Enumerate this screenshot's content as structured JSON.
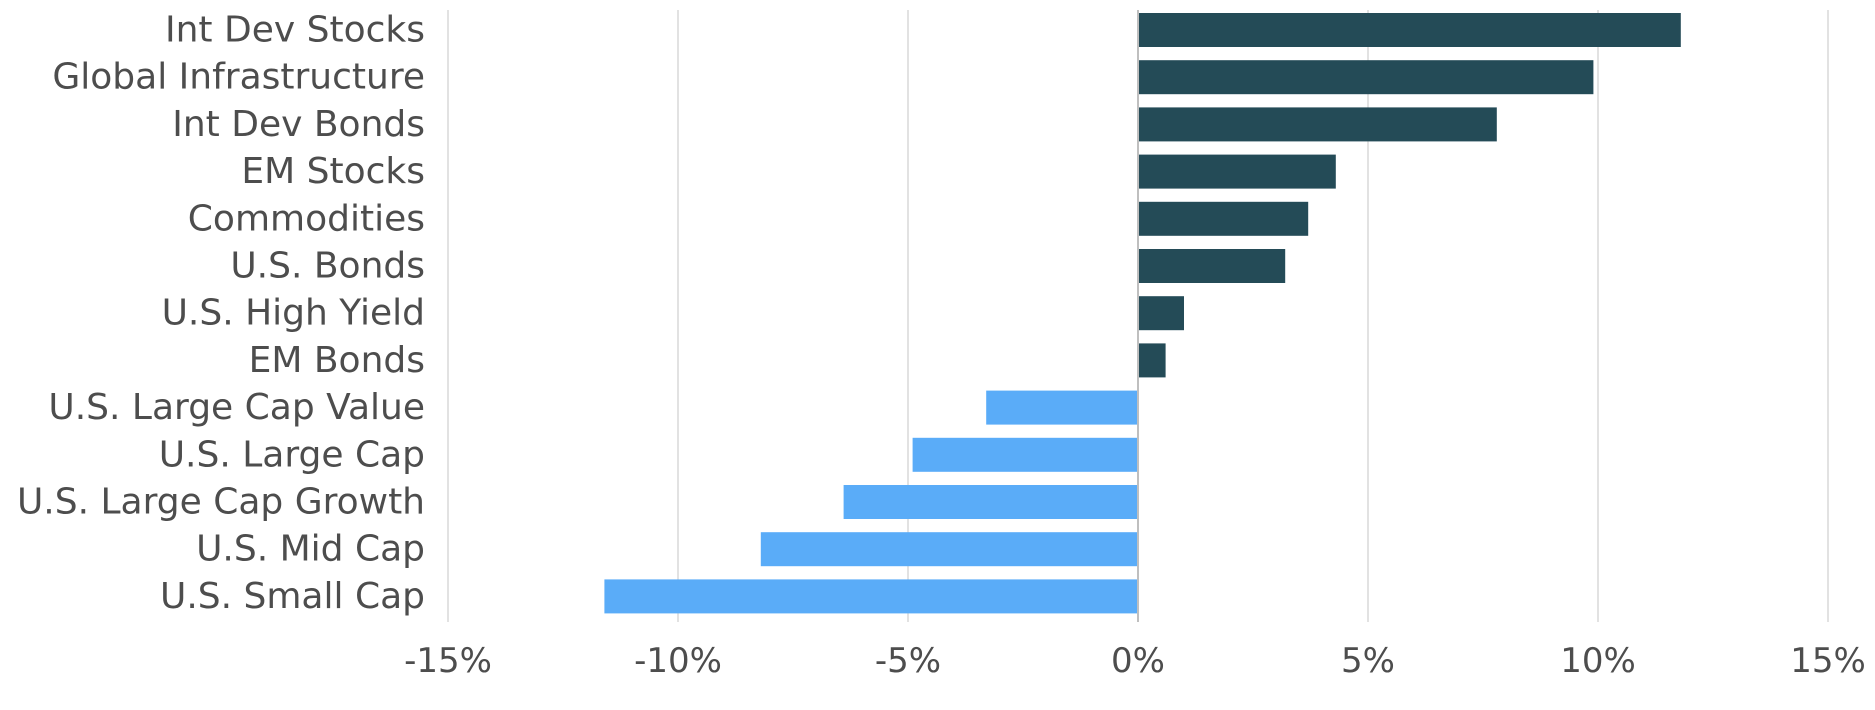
{
  "chart_data": {
    "type": "bar",
    "orientation": "horizontal",
    "categories": [
      "Int Dev Stocks",
      "Global Infrastructure",
      "Int Dev Bonds",
      "EM Stocks",
      "Commodities",
      "U.S. Bonds",
      "U.S. High Yield",
      "EM Bonds",
      "U.S. Large Cap Value",
      "U.S. Large Cap",
      "U.S. Large Cap Growth",
      "U.S. Mid Cap",
      "U.S. Small Cap"
    ],
    "values": [
      11.8,
      9.9,
      7.8,
      4.3,
      3.7,
      3.2,
      1.0,
      0.6,
      -3.3,
      -4.9,
      -6.4,
      -8.2,
      -11.6
    ],
    "xlim": [
      -15,
      15
    ],
    "xticks": [
      -15,
      -10,
      -5,
      0,
      5,
      10,
      15
    ],
    "xtick_labels": [
      "-15%",
      "-10%",
      "-5%",
      "0%",
      "5%",
      "10%",
      "15%"
    ],
    "title": "",
    "xlabel": "",
    "ylabel": "",
    "grid": "vertical",
    "legend": "none",
    "colors": {
      "positive": "#244b57",
      "negative": "#5aacf8",
      "grid": "#d9d9d9",
      "zero_line": "#bfbfbf",
      "text": "#4d4d4d"
    }
  }
}
